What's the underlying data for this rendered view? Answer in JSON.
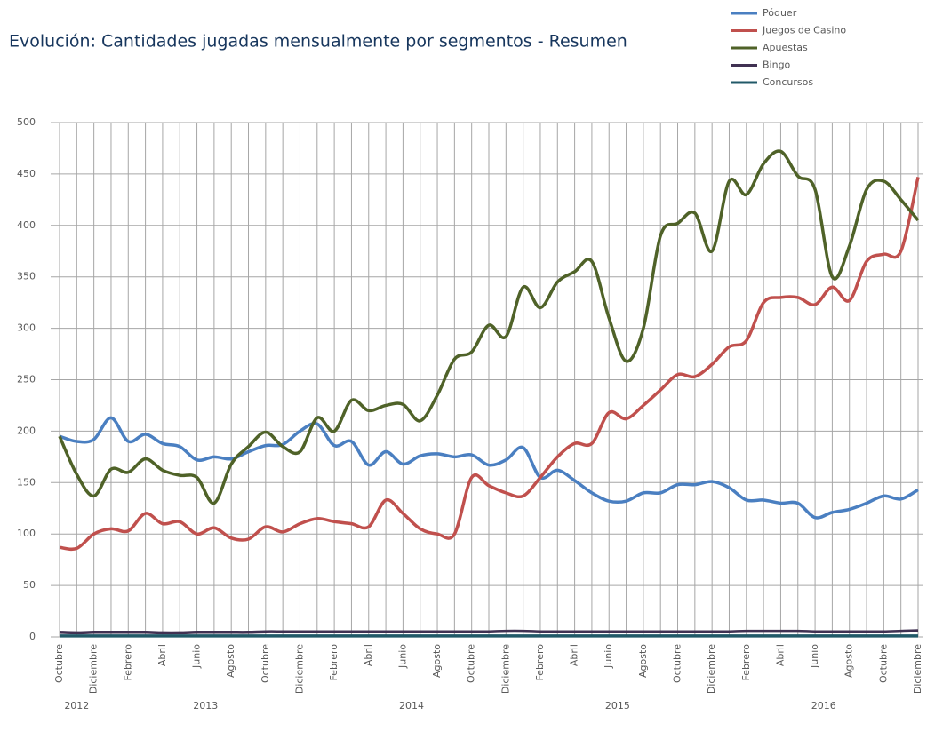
{
  "chart_data": {
    "type": "line",
    "title": "Evolución: Cantidades jugadas mensualmente por segmentos - Resumen",
    "categories": [
      "Octubre",
      null,
      "Diciembre",
      null,
      "Febrero",
      null,
      "Abril",
      null,
      "Junio",
      null,
      "Agosto",
      null,
      "Octubre",
      null,
      "Diciembre",
      null,
      "Febrero",
      null,
      "Abril",
      null,
      "Junio",
      null,
      "Agosto",
      null,
      "Octubre",
      null,
      "Diciembre",
      null,
      "Febrero",
      null,
      "Abril",
      null,
      "Junio",
      null,
      "Agosto",
      null,
      "Octubre",
      null,
      "Diciembre",
      null,
      "Febrero",
      null,
      "Abril",
      null,
      "Junio",
      null,
      "Agosto",
      null,
      "Octubre",
      null,
      "Diciembre"
    ],
    "x_groups": [
      {
        "label": "2012",
        "count": 3
      },
      {
        "label": "2013",
        "count": 12
      },
      {
        "label": "2014",
        "count": 12
      },
      {
        "label": "2015",
        "count": 12
      },
      {
        "label": "2016",
        "count": 12
      }
    ],
    "series": [
      {
        "name": "Póquer",
        "color": "#4a7fc1",
        "values": [
          195,
          190,
          192,
          213,
          190,
          197,
          188,
          185,
          172,
          175,
          173,
          180,
          186,
          187,
          200,
          207,
          186,
          190,
          167,
          180,
          168,
          176,
          178,
          175,
          177,
          167,
          172,
          184,
          155,
          162,
          152,
          140,
          132,
          132,
          140,
          140,
          148,
          148,
          151,
          145,
          133,
          133,
          130,
          130,
          116,
          121,
          124,
          130,
          137,
          134,
          143
        ]
      },
      {
        "name": "Juegos de Casino",
        "color": "#c0504d",
        "values": [
          87,
          86,
          100,
          105,
          103,
          120,
          110,
          112,
          100,
          106,
          96,
          95,
          107,
          102,
          110,
          115,
          112,
          110,
          107,
          133,
          120,
          105,
          100,
          100,
          155,
          147,
          140,
          137,
          155,
          175,
          188,
          188,
          218,
          212,
          225,
          240,
          255,
          253,
          265,
          282,
          288,
          325,
          330,
          330,
          323,
          340,
          327,
          365,
          372,
          375,
          447
        ]
      },
      {
        "name": "Apuestas",
        "color": "#4f6228",
        "values": [
          195,
          158,
          137,
          163,
          160,
          173,
          162,
          157,
          155,
          130,
          168,
          185,
          199,
          185,
          180,
          213,
          200,
          230,
          220,
          225,
          226,
          210,
          235,
          270,
          277,
          303,
          292,
          340,
          320,
          345,
          355,
          365,
          310,
          268,
          300,
          390,
          402,
          412,
          375,
          443,
          430,
          460,
          472,
          448,
          435,
          350,
          380,
          435,
          443,
          425,
          405
        ]
      },
      {
        "name": "Bingo",
        "color": "#403152",
        "values": [
          4.5,
          4,
          4.5,
          4.5,
          4.5,
          4.5,
          4,
          4,
          4.5,
          4.5,
          4.5,
          4.5,
          5,
          5,
          5,
          5,
          5,
          5,
          5,
          5,
          5,
          5,
          5,
          5,
          5,
          5,
          5.5,
          5.5,
          5,
          5,
          5,
          5,
          5,
          5,
          5,
          5,
          5,
          5,
          5,
          5,
          5.5,
          5.5,
          5.5,
          5.5,
          5,
          5,
          5,
          5,
          5,
          5.5,
          6
        ]
      },
      {
        "name": "Concursos",
        "color": "#215968",
        "values": [
          1,
          1,
          1,
          1,
          1,
          1,
          1,
          1,
          1,
          1,
          1,
          1,
          1,
          1,
          1,
          1,
          1,
          1,
          1,
          1,
          1,
          1,
          1,
          1,
          1,
          1,
          1,
          1,
          1,
          1,
          1,
          1,
          1,
          1,
          1,
          1,
          1,
          1,
          1,
          1,
          1,
          1,
          1,
          1,
          1,
          1,
          1,
          1,
          1,
          1,
          1
        ]
      }
    ],
    "ylim": [
      0,
      500
    ],
    "yticks": [
      0,
      50,
      100,
      150,
      200,
      250,
      300,
      350,
      400,
      450,
      500
    ],
    "grid": true
  }
}
